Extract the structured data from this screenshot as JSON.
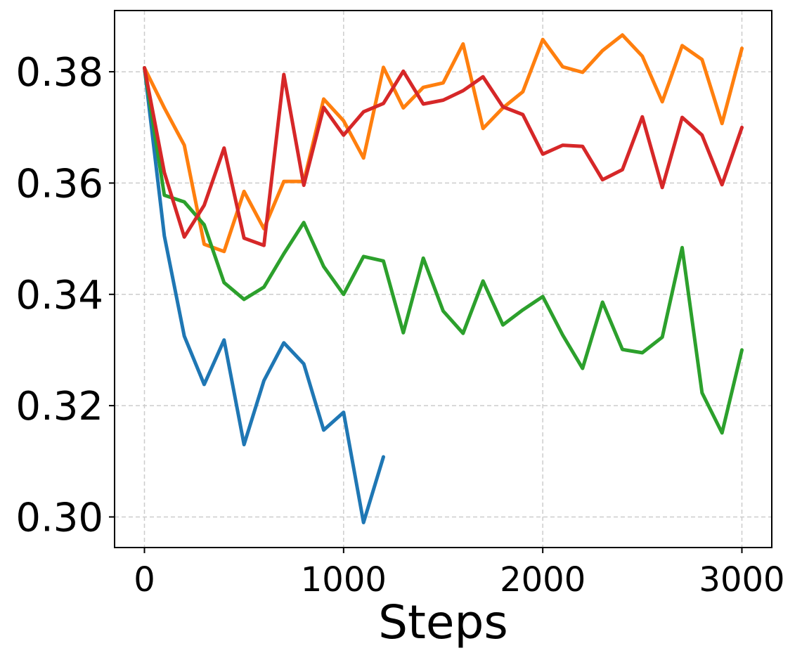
{
  "chart_data": {
    "type": "line",
    "title": "",
    "xlabel": "Steps",
    "ylabel": "",
    "xlim": [
      -150,
      3150
    ],
    "ylim": [
      0.2945,
      0.391
    ],
    "xticks": [
      0,
      1000,
      2000,
      3000
    ],
    "xtick_labels": [
      "0",
      "1000",
      "2000",
      "3000"
    ],
    "yticks": [
      0.3,
      0.32,
      0.34,
      0.36,
      0.38
    ],
    "ytick_labels": [
      "0.30",
      "0.32",
      "0.34",
      "0.36",
      "0.38"
    ],
    "grid": true,
    "legend": false,
    "series": [
      {
        "color": "#1f77b4",
        "x": [
          0,
          100,
          200,
          300,
          400,
          500,
          600,
          700,
          800,
          900,
          1000,
          1100,
          1200
        ],
        "y": [
          0.3807,
          0.3505,
          0.3325,
          0.3238,
          0.3318,
          0.313,
          0.3245,
          0.3313,
          0.3275,
          0.3156,
          0.3188,
          0.299,
          0.3108
        ]
      },
      {
        "color": "#ff7f0e",
        "x": [
          0,
          100,
          200,
          300,
          400,
          500,
          600,
          700,
          800,
          900,
          1000,
          1100,
          1200,
          1300,
          1400,
          1500,
          1600,
          1700,
          1800,
          1900,
          2000,
          2100,
          2200,
          2300,
          2400,
          2500,
          2600,
          2700,
          2800,
          2900,
          3000
        ],
        "y": [
          0.3807,
          0.3735,
          0.3668,
          0.349,
          0.3477,
          0.3585,
          0.3518,
          0.3603,
          0.3603,
          0.3751,
          0.3712,
          0.3645,
          0.3808,
          0.3735,
          0.3772,
          0.378,
          0.385,
          0.3698,
          0.3735,
          0.3764,
          0.3858,
          0.3809,
          0.3799,
          0.3838,
          0.3866,
          0.3828,
          0.3746,
          0.3847,
          0.3822,
          0.3707,
          0.3842
        ]
      },
      {
        "color": "#2ca02c",
        "x": [
          0,
          100,
          200,
          300,
          400,
          500,
          600,
          700,
          800,
          900,
          1000,
          1100,
          1200,
          1300,
          1400,
          1500,
          1600,
          1700,
          1800,
          1900,
          2000,
          2100,
          2200,
          2300,
          2400,
          2500,
          2600,
          2700,
          2800,
          2900,
          3000
        ],
        "y": [
          0.3807,
          0.3578,
          0.3566,
          0.3525,
          0.3421,
          0.3391,
          0.3413,
          0.3473,
          0.3529,
          0.345,
          0.34,
          0.3468,
          0.346,
          0.3331,
          0.3465,
          0.337,
          0.333,
          0.3424,
          0.3345,
          0.3372,
          0.3396,
          0.3327,
          0.3267,
          0.3386,
          0.3301,
          0.3295,
          0.3323,
          0.3484,
          0.3223,
          0.3151,
          0.33
        ]
      },
      {
        "color": "#d62728",
        "x": [
          0,
          100,
          200,
          300,
          400,
          500,
          600,
          700,
          800,
          900,
          1000,
          1100,
          1200,
          1300,
          1400,
          1500,
          1600,
          1700,
          1800,
          1900,
          2000,
          2100,
          2200,
          2300,
          2400,
          2500,
          2600,
          2700,
          2800,
          2900,
          3000
        ],
        "y": [
          0.3807,
          0.3619,
          0.3503,
          0.356,
          0.3663,
          0.3501,
          0.3488,
          0.3795,
          0.3596,
          0.3736,
          0.3686,
          0.3728,
          0.3743,
          0.3801,
          0.3742,
          0.3749,
          0.3766,
          0.3791,
          0.3737,
          0.3723,
          0.3652,
          0.3668,
          0.3666,
          0.3606,
          0.3624,
          0.3719,
          0.3592,
          0.3718,
          0.3686,
          0.3597,
          0.37
        ]
      }
    ]
  }
}
